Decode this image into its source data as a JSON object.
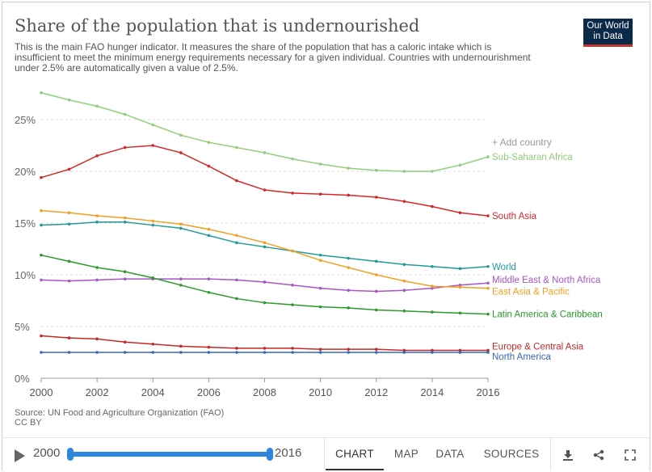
{
  "header": {
    "title": "Share of the population that is undernourished",
    "subtitle": "This is the main FAO hunger indicator. It measures the share of the population that has a caloric intake which is insufficient to meet the minimum energy requirements necessary for a given individual. Countries with undernourishment under 2.5% are automatically given a value of 2.5%.",
    "logo_line1": "Our World",
    "logo_line2": "in Data"
  },
  "add_country_label": "+ Add country",
  "footer": {
    "source": "Source: UN Food and Agriculture Organization (FAO)",
    "license": "CC BY"
  },
  "controls": {
    "start_year": "2000",
    "end_year": "2016",
    "tabs": [
      "CHART",
      "MAP",
      "DATA",
      "SOURCES"
    ],
    "active_tab": "CHART",
    "icons": [
      "download-icon",
      "share-icon",
      "fullscreen-icon"
    ]
  },
  "colors": {
    "Sub-Saharan Africa": "#8fce7b",
    "South Asia": "#d62728",
    "World": "#229a9a",
    "Middle East & North Africa": "#a855c5",
    "East Asia & Pacific": "#f0a020",
    "Latin America & Caribbean": "#2c9a2c",
    "Europe & Central Asia": "#c62828",
    "North America": "#3568b5"
  },
  "chart_data": {
    "type": "line",
    "x": [
      2000,
      2001,
      2002,
      2003,
      2004,
      2005,
      2006,
      2007,
      2008,
      2009,
      2010,
      2011,
      2012,
      2013,
      2014,
      2015,
      2016
    ],
    "xticks": [
      "2000",
      "2002",
      "2004",
      "2006",
      "2008",
      "2010",
      "2012",
      "2014",
      "2016"
    ],
    "yticks": [
      "0%",
      "5%",
      "10%",
      "15%",
      "20%",
      "25%"
    ],
    "ylim": [
      0,
      27
    ],
    "grid": "horizontal dashed",
    "series": [
      {
        "name": "Sub-Saharan Africa",
        "values": [
          27.6,
          26.9,
          26.3,
          25.5,
          24.5,
          23.5,
          22.8,
          22.3,
          21.8,
          21.2,
          20.7,
          20.3,
          20.1,
          20.0,
          20.0,
          20.6,
          21.4
        ]
      },
      {
        "name": "South Asia",
        "values": [
          19.4,
          20.2,
          21.5,
          22.3,
          22.5,
          21.8,
          20.5,
          19.1,
          18.2,
          17.9,
          17.8,
          17.7,
          17.5,
          17.1,
          16.6,
          16.0,
          15.7
        ]
      },
      {
        "name": "World",
        "values": [
          14.8,
          14.9,
          15.1,
          15.1,
          14.8,
          14.5,
          13.8,
          13.1,
          12.7,
          12.3,
          11.9,
          11.6,
          11.3,
          11.0,
          10.8,
          10.6,
          10.8
        ]
      },
      {
        "name": "Middle East & North Africa",
        "values": [
          9.5,
          9.4,
          9.5,
          9.6,
          9.6,
          9.6,
          9.6,
          9.5,
          9.3,
          9.0,
          8.7,
          8.5,
          8.4,
          8.5,
          8.7,
          9.0,
          9.2
        ]
      },
      {
        "name": "East Asia & Pacific",
        "values": [
          16.2,
          16.0,
          15.7,
          15.5,
          15.2,
          14.9,
          14.4,
          13.8,
          13.1,
          12.3,
          11.4,
          10.7,
          10.0,
          9.4,
          8.9,
          8.8,
          8.7
        ]
      },
      {
        "name": "Latin America & Caribbean",
        "values": [
          11.9,
          11.3,
          10.7,
          10.3,
          9.7,
          9.0,
          8.3,
          7.7,
          7.3,
          7.1,
          6.9,
          6.8,
          6.6,
          6.5,
          6.4,
          6.3,
          6.2
        ]
      },
      {
        "name": "Europe & Central Asia",
        "values": [
          4.1,
          3.9,
          3.8,
          3.5,
          3.3,
          3.1,
          3.0,
          2.9,
          2.9,
          2.9,
          2.8,
          2.8,
          2.8,
          2.7,
          2.7,
          2.7,
          2.7
        ]
      },
      {
        "name": "North America",
        "values": [
          2.5,
          2.5,
          2.5,
          2.5,
          2.5,
          2.5,
          2.5,
          2.5,
          2.5,
          2.5,
          2.5,
          2.5,
          2.5,
          2.5,
          2.5,
          2.5,
          2.5
        ]
      }
    ]
  }
}
